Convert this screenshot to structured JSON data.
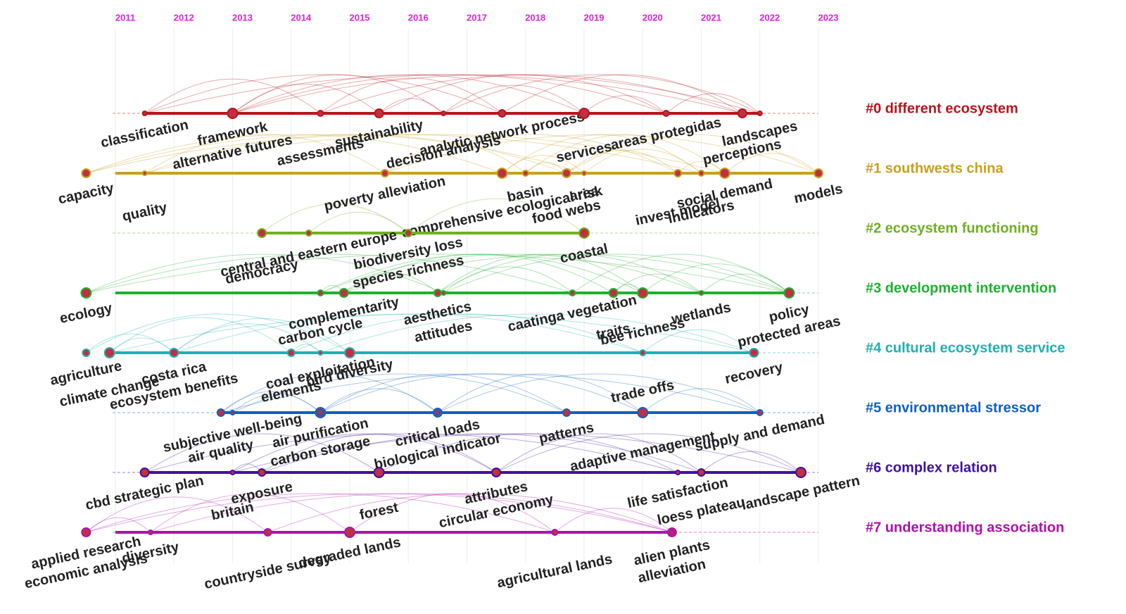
{
  "years": [
    2011,
    2012,
    2013,
    2014,
    2015,
    2016,
    2017,
    2018,
    2019,
    2020,
    2021,
    2022,
    2023
  ],
  "clusters": [
    {
      "label": "#0 different ecosystem",
      "color": "#b8141c",
      "keywords": [
        {
          "label": "classification",
          "year": 2011.5
        },
        {
          "label": "alternative futures",
          "year": 2013
        },
        {
          "label": "framework",
          "year": 2013
        },
        {
          "label": "assessments",
          "year": 2014.5
        },
        {
          "label": "sustainability",
          "year": 2015.5
        },
        {
          "label": "decision analysis",
          "year": 2016.6
        },
        {
          "label": "analytic network process",
          "year": 2017.6
        },
        {
          "label": "services",
          "year": 2019
        },
        {
          "label": "areas protegidas",
          "year": 2020.4
        },
        {
          "label": "perceptions",
          "year": 2021.7
        },
        {
          "label": "landscapes",
          "year": 2022
        }
      ]
    },
    {
      "label": "#1 southwests china",
      "color": "#c8a020",
      "keywords": [
        {
          "label": "capacity",
          "year": 2010.5
        },
        {
          "label": "quality",
          "year": 2011.5
        },
        {
          "label": "poverty alleviation",
          "year": 2015.6
        },
        {
          "label": "comprehensive ecological risk",
          "year": 2017.6
        },
        {
          "label": "basin",
          "year": 2018
        },
        {
          "label": "food webs",
          "year": 2018.7
        },
        {
          "label": "area",
          "year": 2019
        },
        {
          "label": "invest model",
          "year": 2020.6
        },
        {
          "label": "social demand",
          "year": 2021.4
        },
        {
          "label": "indicators",
          "year": 2021
        },
        {
          "label": "models",
          "year": 2023
        }
      ]
    },
    {
      "label": "#2 ecosystem functioning",
      "color": "#70b020",
      "keywords": [
        {
          "label": "central and eastern europe",
          "year": 2014.3
        },
        {
          "label": "democracy",
          "year": 2013.5
        },
        {
          "label": "biodiversity loss",
          "year": 2016
        },
        {
          "label": "species richness",
          "year": 2016
        },
        {
          "label": "coastal",
          "year": 2019
        }
      ]
    },
    {
      "label": "#3 development intervention",
      "color": "#20b030",
      "keywords": [
        {
          "label": "ecology",
          "year": 2010.5
        },
        {
          "label": "carbon cycle",
          "year": 2014.5
        },
        {
          "label": "complementarity",
          "year": 2014.9
        },
        {
          "label": "attitudes",
          "year": 2016.6
        },
        {
          "label": "aesthetics",
          "year": 2016.5
        },
        {
          "label": "bee richness",
          "year": 2020
        },
        {
          "label": "caatinga vegetation",
          "year": 2018.8
        },
        {
          "label": "traits",
          "year": 2019.5
        },
        {
          "label": "wetlands",
          "year": 2021
        },
        {
          "label": "protected areas",
          "year": 2022.5
        },
        {
          "label": "policy",
          "year": 2022.5
        }
      ]
    },
    {
      "label": "#4 cultural ecosystem service",
      "color": "#20b0b0",
      "keywords": [
        {
          "label": "agriculture",
          "year": 2010.5
        },
        {
          "label": "climate change",
          "year": 2010.9
        },
        {
          "label": "costa rica",
          "year": 2012
        },
        {
          "label": "ecosystem benefits",
          "year": 2012
        },
        {
          "label": "coal exploitation",
          "year": 2014.5
        },
        {
          "label": "elements",
          "year": 2014
        },
        {
          "label": "bird diversity",
          "year": 2015
        },
        {
          "label": "trade offs",
          "year": 2020
        },
        {
          "label": "recovery",
          "year": 2021.9
        }
      ]
    },
    {
      "label": "#5 environmental stressor",
      "color": "#1060c0",
      "keywords": [
        {
          "label": "subjective well-being",
          "year": 2013
        },
        {
          "label": "air quality",
          "year": 2012.8
        },
        {
          "label": "air purification",
          "year": 2014.5
        },
        {
          "label": "carbon storage",
          "year": 2014.5
        },
        {
          "label": "critical loads",
          "year": 2016.5
        },
        {
          "label": "biological indicator",
          "year": 2016.5
        },
        {
          "label": "patterns",
          "year": 2018.7
        },
        {
          "label": "adaptive management",
          "year": 2020
        },
        {
          "label": "supply and demand",
          "year": 2022
        }
      ]
    },
    {
      "label": "#6 complex relation",
      "color": "#4010a0",
      "keywords": [
        {
          "label": "cbd strategic plan",
          "year": 2011.5
        },
        {
          "label": "britain",
          "year": 2013
        },
        {
          "label": "exposure",
          "year": 2013.5
        },
        {
          "label": "forest",
          "year": 2015.5
        },
        {
          "label": "attributes",
          "year": 2017.5
        },
        {
          "label": "circular economy",
          "year": 2017.5
        },
        {
          "label": "life satisfaction",
          "year": 2020.6
        },
        {
          "label": "loess plateau",
          "year": 2021
        },
        {
          "label": "landscape pattern",
          "year": 2022.7
        }
      ]
    },
    {
      "label": "#7 understanding association",
      "color": "#b010b0",
      "keywords": [
        {
          "label": "applied research",
          "year": 2010.5
        },
        {
          "label": "economic analysis",
          "year": 2010.5
        },
        {
          "label": "diversity",
          "year": 2011.6
        },
        {
          "label": "countryside survey",
          "year": 2013.6
        },
        {
          "label": "degraded lands",
          "year": 2015
        },
        {
          "label": "agricultural lands",
          "year": 2018.5
        },
        {
          "label": "alien plants",
          "year": 2020.5
        },
        {
          "label": "alleviation",
          "year": 2020.5
        }
      ]
    }
  ]
}
